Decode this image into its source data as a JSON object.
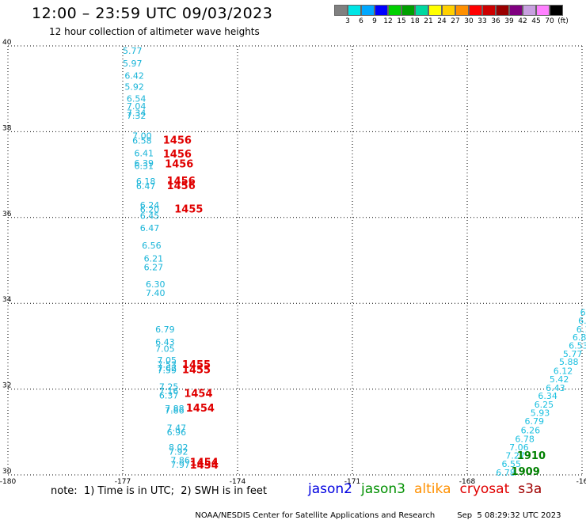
{
  "header": {
    "title": "12:00 – 23:59 UTC 09/03/2023",
    "subtitle": "12 hour collection of altimeter wave heights"
  },
  "colorbar": {
    "colors": [
      "#808080",
      "#00e5e5",
      "#00a8ff",
      "#0000ff",
      "#00d000",
      "#00a000",
      "#00d8a0",
      "#ffff00",
      "#ffd000",
      "#ff9000",
      "#ff0000",
      "#cc0000",
      "#990000",
      "#800080",
      "#c8a0e0",
      "#ff80ff",
      "#000000"
    ],
    "labels": [
      "3",
      "6",
      "9",
      "12",
      "15",
      "18",
      "21",
      "24",
      "27",
      "30",
      "33",
      "36",
      "39",
      "42",
      "45",
      "70",
      "(ft)"
    ]
  },
  "chart_data": {
    "type": "scatter",
    "xlim": [
      -180,
      -165
    ],
    "ylim": [
      30,
      40
    ],
    "x_ticks": [
      "-180",
      "-177",
      "-174",
      "-171",
      "-168",
      "-16"
    ],
    "y_ticks": [
      "40",
      "38",
      "36",
      "34",
      "32",
      "30"
    ],
    "colors": {
      "swh": "#18b4d8",
      "swh_right": "#1cc0e0",
      "time": "#e00000",
      "time_green": "#008000"
    },
    "swh_labels": [
      {
        "lon": -177.0,
        "lat": 39.82,
        "text": "5.77"
      },
      {
        "lon": -177.0,
        "lat": 39.52,
        "text": "5.97"
      },
      {
        "lon": -176.95,
        "lat": 39.23,
        "text": "6.42"
      },
      {
        "lon": -176.95,
        "lat": 38.98,
        "text": "5.92"
      },
      {
        "lon": -176.9,
        "lat": 38.7,
        "text": "6.54"
      },
      {
        "lon": -176.9,
        "lat": 38.52,
        "text": "7.04"
      },
      {
        "lon": -176.9,
        "lat": 38.37,
        "text": "7.34"
      },
      {
        "lon": -176.9,
        "lat": 38.3,
        "text": "7.32"
      },
      {
        "lon": -176.75,
        "lat": 37.83,
        "text": "7.00"
      },
      {
        "lon": -176.75,
        "lat": 37.72,
        "text": "6.58"
      },
      {
        "lon": -176.7,
        "lat": 37.43,
        "text": "6.41"
      },
      {
        "lon": -176.7,
        "lat": 37.2,
        "text": "6.39"
      },
      {
        "lon": -176.7,
        "lat": 37.13,
        "text": "6.31"
      },
      {
        "lon": -176.65,
        "lat": 36.77,
        "text": "6.18"
      },
      {
        "lon": -176.65,
        "lat": 36.66,
        "text": "6.47"
      },
      {
        "lon": -176.55,
        "lat": 36.22,
        "text": "6.24"
      },
      {
        "lon": -176.55,
        "lat": 36.12,
        "text": "6.20"
      },
      {
        "lon": -176.55,
        "lat": 35.97,
        "text": "6.45"
      },
      {
        "lon": -176.55,
        "lat": 35.68,
        "text": "6.47"
      },
      {
        "lon": -176.5,
        "lat": 35.28,
        "text": "6.56"
      },
      {
        "lon": -176.45,
        "lat": 34.97,
        "text": "6.21"
      },
      {
        "lon": -176.45,
        "lat": 34.77,
        "text": "6.27"
      },
      {
        "lon": -176.4,
        "lat": 34.37,
        "text": "6.30"
      },
      {
        "lon": -176.4,
        "lat": 34.17,
        "text": "7.40"
      },
      {
        "lon": -176.15,
        "lat": 33.32,
        "text": "6.79"
      },
      {
        "lon": -176.15,
        "lat": 33.03,
        "text": "6.43"
      },
      {
        "lon": -176.15,
        "lat": 32.87,
        "text": "7.05"
      },
      {
        "lon": -176.1,
        "lat": 32.6,
        "text": "7.05"
      },
      {
        "lon": -176.1,
        "lat": 32.5,
        "text": "7.53"
      },
      {
        "lon": -176.1,
        "lat": 32.42,
        "text": "7.62"
      },
      {
        "lon": -176.1,
        "lat": 32.37,
        "text": "7.59"
      },
      {
        "lon": -176.05,
        "lat": 31.98,
        "text": "7.25"
      },
      {
        "lon": -176.05,
        "lat": 31.88,
        "text": "7.16"
      },
      {
        "lon": -176.05,
        "lat": 31.78,
        "text": "6.37"
      },
      {
        "lon": -175.9,
        "lat": 31.48,
        "text": "7.88"
      },
      {
        "lon": -175.9,
        "lat": 31.43,
        "text": "7.86"
      },
      {
        "lon": -175.85,
        "lat": 31.02,
        "text": "7.47"
      },
      {
        "lon": -175.85,
        "lat": 30.92,
        "text": "6.96"
      },
      {
        "lon": -175.8,
        "lat": 30.57,
        "text": "8.02"
      },
      {
        "lon": -175.8,
        "lat": 30.47,
        "text": "7.92"
      },
      {
        "lon": -175.75,
        "lat": 30.27,
        "text": "7.86"
      },
      {
        "lon": -175.75,
        "lat": 30.17,
        "text": "7.97"
      },
      {
        "lon": -165.05,
        "lat": 33.72,
        "text": "6"
      },
      {
        "lon": -165.1,
        "lat": 33.52,
        "text": "6."
      },
      {
        "lon": -165.15,
        "lat": 33.32,
        "text": "6.1"
      },
      {
        "lon": -165.25,
        "lat": 33.14,
        "text": "6.85"
      },
      {
        "lon": -165.35,
        "lat": 32.94,
        "text": "6.53"
      },
      {
        "lon": -165.5,
        "lat": 32.75,
        "text": "5.77"
      },
      {
        "lon": -165.6,
        "lat": 32.56,
        "text": "5.88"
      },
      {
        "lon": -165.75,
        "lat": 32.35,
        "text": "6.12"
      },
      {
        "lon": -165.85,
        "lat": 32.16,
        "text": "5.42"
      },
      {
        "lon": -165.95,
        "lat": 31.96,
        "text": "6.43"
      },
      {
        "lon": -166.15,
        "lat": 31.77,
        "text": "6.34"
      },
      {
        "lon": -166.25,
        "lat": 31.57,
        "text": "6.25"
      },
      {
        "lon": -166.35,
        "lat": 31.37,
        "text": "5.93"
      },
      {
        "lon": -166.5,
        "lat": 31.18,
        "text": "6.79"
      },
      {
        "lon": -166.6,
        "lat": 30.97,
        "text": "6.26"
      },
      {
        "lon": -166.75,
        "lat": 30.77,
        "text": "6.78"
      },
      {
        "lon": -166.9,
        "lat": 30.57,
        "text": "7.06"
      },
      {
        "lon": -167.0,
        "lat": 30.38,
        "text": "7.27"
      },
      {
        "lon": -167.1,
        "lat": 30.18,
        "text": "6.55"
      },
      {
        "lon": -167.25,
        "lat": 29.98,
        "text": "6.78"
      }
    ],
    "time_labels": [
      {
        "lon": -175.95,
        "lat": 37.72,
        "text": "1456",
        "color": "red"
      },
      {
        "lon": -175.95,
        "lat": 37.4,
        "text": "1456",
        "color": "red"
      },
      {
        "lon": -175.9,
        "lat": 37.17,
        "text": "1456",
        "color": "red"
      },
      {
        "lon": -175.85,
        "lat": 36.77,
        "text": "1456",
        "color": "red"
      },
      {
        "lon": -175.85,
        "lat": 36.66,
        "text": "1456",
        "color": "red"
      },
      {
        "lon": -175.65,
        "lat": 36.12,
        "text": "1455",
        "color": "red"
      },
      {
        "lon": -175.45,
        "lat": 32.49,
        "text": "1455",
        "color": "red"
      },
      {
        "lon": -175.45,
        "lat": 32.37,
        "text": "1455",
        "color": "red"
      },
      {
        "lon": -175.4,
        "lat": 31.82,
        "text": "1454",
        "color": "red"
      },
      {
        "lon": -175.35,
        "lat": 31.48,
        "text": "1454",
        "color": "red"
      },
      {
        "lon": -175.25,
        "lat": 30.21,
        "text": "1454",
        "color": "red"
      },
      {
        "lon": -175.25,
        "lat": 30.15,
        "text": "1454",
        "color": "red"
      },
      {
        "lon": -166.7,
        "lat": 30.37,
        "text": "1910",
        "color": "green"
      },
      {
        "lon": -166.85,
        "lat": 30.0,
        "text": "1909",
        "color": "green"
      }
    ]
  },
  "footer": {
    "note": "note:  1) Time is in UTC;  2) SWH is in feet",
    "legend": [
      {
        "label": "jason2",
        "color": "#0000e0"
      },
      {
        "label": "jason3",
        "color": "#009000"
      },
      {
        "label": "altika",
        "color": "#ff9000"
      },
      {
        "label": "cryosat",
        "color": "#e00000"
      },
      {
        "label": "s3a",
        "color": "#a00000"
      }
    ],
    "credit": "NOAA/NESDIS Center for Satellite Applications and Research",
    "timestamp": "Sep  5 08:29:32 UTC 2023"
  }
}
